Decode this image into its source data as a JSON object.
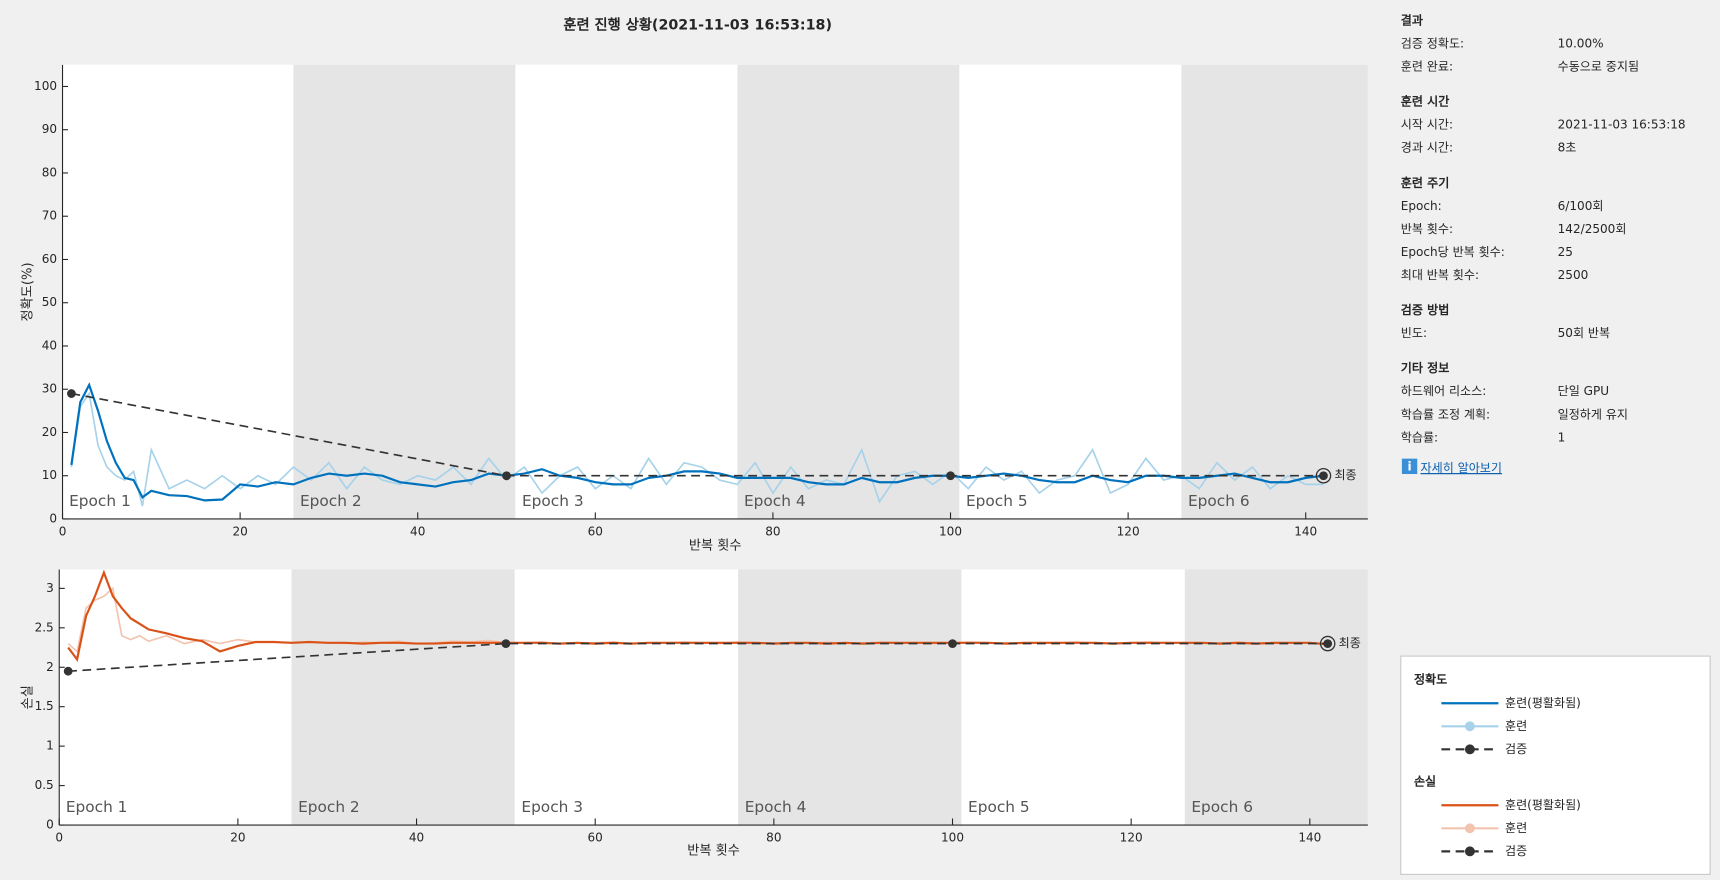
{
  "title": "훈련 진행 상황(2021-11-03 16:53:18)",
  "chart_data": [
    {
      "type": "line",
      "ylabel": "정확도(%)",
      "xlabel": "반복 횟수",
      "legend_title": "정확도",
      "final_label": "최종",
      "xlim": [
        0,
        147
      ],
      "ylim": [
        0,
        105
      ],
      "xticks": [
        0,
        20,
        40,
        60,
        80,
        100,
        120,
        140
      ],
      "yticks": [
        0,
        10,
        20,
        30,
        40,
        50,
        60,
        70,
        80,
        90,
        100
      ],
      "epochs": [
        "Epoch 1",
        "Epoch 2",
        "Epoch 3",
        "Epoch 4",
        "Epoch 5",
        "Epoch 6"
      ],
      "epoch_starts": [
        0,
        26,
        51,
        76,
        101,
        126
      ],
      "x": [
        1,
        2,
        3,
        4,
        5,
        6,
        7,
        8,
        9,
        10,
        12,
        14,
        16,
        18,
        20,
        22,
        24,
        26,
        28,
        30,
        32,
        34,
        36,
        38,
        40,
        42,
        44,
        46,
        48,
        50,
        52,
        54,
        56,
        58,
        60,
        62,
        64,
        66,
        68,
        70,
        72,
        74,
        76,
        78,
        80,
        82,
        84,
        86,
        88,
        90,
        92,
        94,
        96,
        98,
        100,
        102,
        104,
        106,
        108,
        110,
        112,
        114,
        116,
        118,
        120,
        122,
        124,
        126,
        128,
        130,
        132,
        134,
        136,
        138,
        140,
        142
      ],
      "series": [
        {
          "name": "훈련(평활화됨)",
          "color": "#0072bd",
          "values": [
            12.5,
            27,
            31,
            25,
            18,
            13,
            9.5,
            9,
            5,
            6.5,
            5.5,
            5.3,
            4.3,
            4.5,
            8,
            7.5,
            8.5,
            8,
            9.5,
            10.5,
            10,
            10.5,
            10,
            8.5,
            8,
            7.5,
            8.5,
            9,
            10.5,
            10,
            10.5,
            11.5,
            10,
            9.5,
            8.5,
            8,
            8,
            9.5,
            10,
            11,
            11,
            10.5,
            9.5,
            9.5,
            9.5,
            9.5,
            8.5,
            8,
            8,
            9.5,
            8.5,
            8.5,
            9.5,
            10,
            10,
            9.5,
            10,
            10.5,
            10,
            9,
            8.5,
            8.5,
            10,
            9,
            8.5,
            10,
            10,
            9.5,
            9.5,
            10,
            10.5,
            9.5,
            8.5,
            8.5,
            9.5,
            10
          ]
        },
        {
          "name": "훈련",
          "color": "#a6d2ea",
          "legend_marker": true,
          "values": [
            12,
            26,
            29,
            17,
            12,
            10,
            9,
            11,
            3,
            16,
            7,
            9,
            7,
            10,
            7,
            10,
            8,
            12,
            9,
            13,
            7,
            12,
            9,
            8,
            10,
            9,
            12,
            8,
            14,
            9,
            12,
            6,
            10,
            12,
            7,
            10,
            7,
            14,
            8,
            13,
            12,
            9,
            8,
            13,
            6,
            12,
            7,
            9,
            8,
            16,
            4,
            10,
            11,
            8,
            11,
            7,
            12,
            9,
            11,
            6,
            9,
            10,
            16,
            6,
            8,
            14,
            9,
            10,
            7,
            13,
            9,
            12,
            7,
            10,
            8,
            8
          ]
        },
        {
          "name": "검증",
          "color": "#333333",
          "dash": true,
          "marker": true,
          "legend_marker": true,
          "x": [
            1,
            50,
            100,
            142
          ],
          "values": [
            29,
            10,
            10,
            10
          ]
        }
      ]
    },
    {
      "type": "line",
      "ylabel": "손실",
      "xlabel": "반복 횟수",
      "legend_title": "손실",
      "final_label": "최종",
      "xlim": [
        0,
        146.5
      ],
      "ylim": [
        0,
        3.24
      ],
      "xticks": [
        0,
        20,
        40,
        60,
        80,
        100,
        120,
        140
      ],
      "yticks": [
        0,
        0.5,
        1,
        1.5,
        2,
        2.5,
        3
      ],
      "epochs": [
        "Epoch 1",
        "Epoch 2",
        "Epoch 3",
        "Epoch 4",
        "Epoch 5",
        "Epoch 6"
      ],
      "epoch_starts": [
        0,
        26,
        51,
        76,
        101,
        126
      ],
      "x": [
        1,
        2,
        3,
        4,
        5,
        6,
        7,
        8,
        9,
        10,
        12,
        14,
        16,
        18,
        20,
        22,
        24,
        26,
        28,
        30,
        32,
        34,
        36,
        38,
        40,
        42,
        44,
        46,
        48,
        50,
        52,
        54,
        56,
        58,
        60,
        62,
        64,
        66,
        68,
        70,
        72,
        74,
        76,
        78,
        80,
        82,
        84,
        86,
        88,
        90,
        92,
        94,
        96,
        98,
        100,
        102,
        104,
        106,
        108,
        110,
        112,
        114,
        116,
        118,
        120,
        122,
        124,
        126,
        128,
        130,
        132,
        134,
        136,
        138,
        140,
        142
      ],
      "series": [
        {
          "name": "훈련(평활화됨)",
          "color": "#d95319",
          "values": [
            2.25,
            2.1,
            2.65,
            2.9,
            3.2,
            2.9,
            2.75,
            2.62,
            2.55,
            2.48,
            2.43,
            2.37,
            2.33,
            2.2,
            2.27,
            2.32,
            2.32,
            2.31,
            2.32,
            2.31,
            2.31,
            2.3,
            2.31,
            2.31,
            2.3,
            2.3,
            2.31,
            2.31,
            2.31,
            2.31,
            2.31,
            2.31,
            2.3,
            2.31,
            2.3,
            2.31,
            2.3,
            2.31,
            2.31,
            2.31,
            2.31,
            2.31,
            2.31,
            2.31,
            2.3,
            2.31,
            2.31,
            2.3,
            2.31,
            2.3,
            2.31,
            2.31,
            2.31,
            2.31,
            2.31,
            2.31,
            2.31,
            2.3,
            2.31,
            2.31,
            2.31,
            2.31,
            2.31,
            2.3,
            2.31,
            2.31,
            2.31,
            2.31,
            2.31,
            2.3,
            2.31,
            2.3,
            2.31,
            2.31,
            2.31,
            2.29
          ]
        },
        {
          "name": "훈련",
          "color": "#f2c4b0",
          "legend_marker": true,
          "values": [
            2.3,
            2.2,
            2.75,
            2.85,
            2.9,
            3.0,
            2.4,
            2.35,
            2.4,
            2.33,
            2.4,
            2.3,
            2.35,
            2.3,
            2.35,
            2.32,
            2.32,
            2.31,
            2.32,
            2.31,
            2.3,
            2.32,
            2.31,
            2.33,
            2.3,
            2.31,
            2.33,
            2.32,
            2.34,
            2.31,
            2.31,
            2.32,
            2.3,
            2.31,
            2.31,
            2.32,
            2.3,
            2.31,
            2.31,
            2.32,
            2.31,
            2.3,
            2.32,
            2.31,
            2.31,
            2.3,
            2.31,
            2.32,
            2.3,
            2.31,
            2.32,
            2.31,
            2.31,
            2.3,
            2.31,
            2.32,
            2.31,
            2.31,
            2.3,
            2.31,
            2.31,
            2.32,
            2.3,
            2.31,
            2.31,
            2.32,
            2.31,
            2.31,
            2.3,
            2.31,
            2.32,
            2.31,
            2.3,
            2.31,
            2.31,
            2.31
          ]
        },
        {
          "name": "검증",
          "color": "#333333",
          "dash": true,
          "marker": true,
          "legend_marker": true,
          "x": [
            1,
            50,
            100,
            142
          ],
          "values": [
            1.95,
            2.3,
            2.3,
            2.3
          ]
        }
      ]
    }
  ],
  "info_panel": {
    "sections": [
      {
        "title": "결과",
        "rows": [
          [
            "검증 정확도:",
            "10.00%"
          ],
          [
            "훈련 완료:",
            "수동으로 중지됨"
          ]
        ]
      },
      {
        "title": "훈련 시간",
        "rows": [
          [
            "시작 시간:",
            "2021-11-03 16:53:18"
          ],
          [
            "경과 시간:",
            "8초"
          ]
        ]
      },
      {
        "title": "훈련 주기",
        "rows": [
          [
            "Epoch:",
            "6/100회"
          ],
          [
            "반복 횟수:",
            "142/2500회"
          ],
          [
            "Epoch당 반복 횟수:",
            "25"
          ],
          [
            "최대 반복 횟수:",
            "2500"
          ]
        ]
      },
      {
        "title": "검증 방법",
        "rows": [
          [
            "빈도:",
            "50회 반복"
          ]
        ]
      },
      {
        "title": "기타 정보",
        "rows": [
          [
            "하드웨어 리소스:",
            "단일 GPU"
          ],
          [
            "학습률 조정 계획:",
            "일정하게 유지"
          ],
          [
            "학습률:",
            "1"
          ]
        ]
      }
    ],
    "link": "자세히 알아보기"
  }
}
